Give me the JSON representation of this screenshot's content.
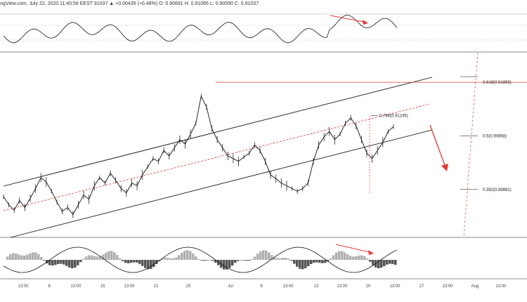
{
  "header": {
    "source": "ngView.com, July 22, 2020 11:40:58 EEST",
    "quote": "91037 ▲ +0.00435 (+0.48%) O: 0.90691 H: 0.91065 L: 0.90590 C: 0.91037"
  },
  "chart_data": {
    "type": "line",
    "title": "",
    "xlabel": "",
    "ylabel": "",
    "x_ticks": [
      "13:00",
      "8",
      "13:00",
      "15",
      "13:00",
      "22",
      "25",
      "Jul",
      "6",
      "13:00",
      "13",
      "13:00",
      "20",
      "13:00",
      "27",
      "13:00",
      "Aug",
      "13:00"
    ],
    "ylim": [
      0.89,
      0.924
    ],
    "price_series": [
      0.8975,
      0.896,
      0.895,
      0.8968,
      0.8955,
      0.8972,
      0.899,
      0.901,
      0.9002,
      0.8985,
      0.8965,
      0.8948,
      0.8955,
      0.8942,
      0.896,
      0.8978,
      0.897,
      0.8995,
      0.901,
      0.9,
      0.9018,
      0.9005,
      0.899,
      0.8982,
      0.9,
      0.8995,
      0.9015,
      0.903,
      0.9045,
      0.904,
      0.906,
      0.905,
      0.9065,
      0.908,
      0.9072,
      0.909,
      0.911,
      0.916,
      0.914,
      0.91,
      0.908,
      0.9065,
      0.905,
      0.9045,
      0.904,
      0.9048,
      0.9055,
      0.907,
      0.906,
      0.904,
      0.9015,
      0.9008,
      0.9,
      0.8995,
      0.899,
      0.8985,
      0.899,
      0.9,
      0.904,
      0.907,
      0.9085,
      0.9095,
      0.908,
      0.909,
      0.911,
      0.912,
      0.9105,
      0.908,
      0.9055,
      0.9045,
      0.906,
      0.9075,
      0.9095,
      0.9104
    ],
    "fib_levels": [
      {
        "label": "0.618(0.91855)",
        "value": 0.91855
      },
      {
        "label": "0.786(0.91245)",
        "value": 0.91245
      },
      {
        "label": "0.5(0.90868)",
        "value": 0.90868
      },
      {
        "label": "0.382(0.89882)",
        "value": 0.89882
      }
    ],
    "colors": {
      "price": "#111111",
      "channel": "#111111",
      "midline": "#e53935",
      "forecast": "#e53935",
      "fib": "#e53935",
      "hist_pos": "#b0b0b0",
      "hist_neg": "#555555"
    }
  }
}
